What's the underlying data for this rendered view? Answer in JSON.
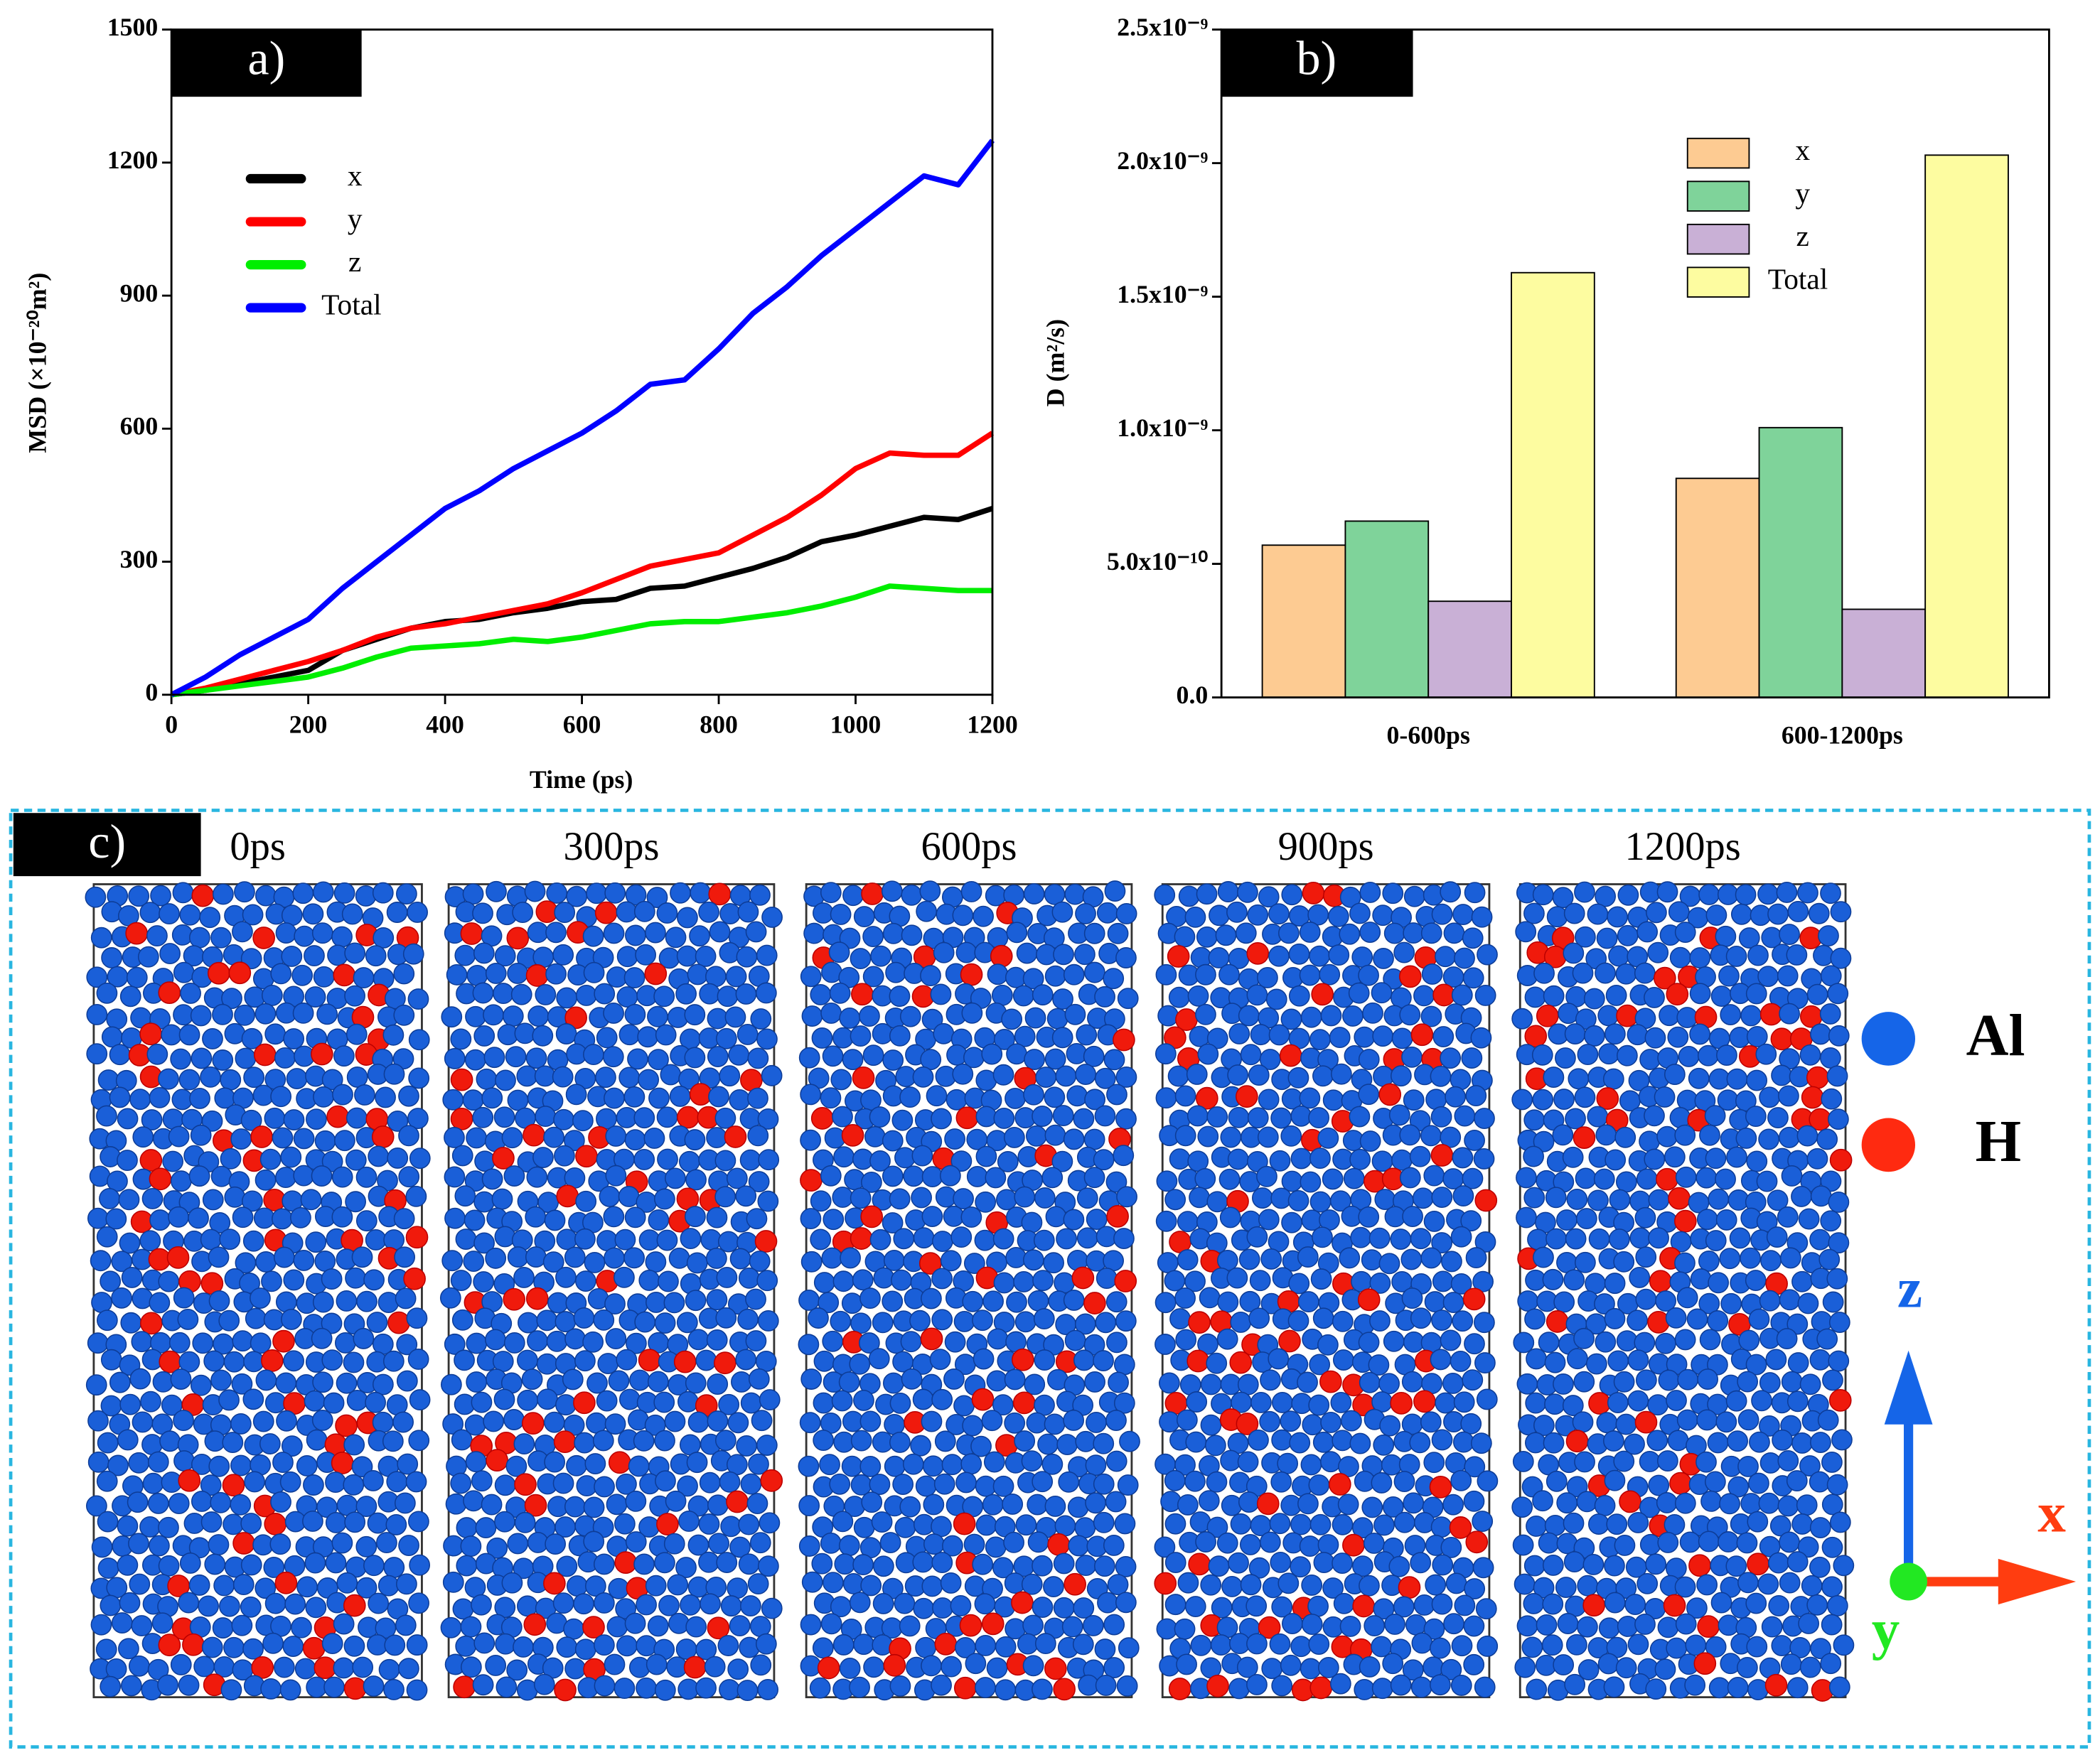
{
  "chart_data": [
    {
      "type": "line",
      "label": "a)",
      "xlabel": "Time (ps)",
      "ylabel": "MSD (×10⁻²⁰m²)",
      "x": [
        0,
        50,
        100,
        150,
        200,
        250,
        300,
        350,
        400,
        450,
        500,
        550,
        600,
        650,
        700,
        750,
        800,
        850,
        900,
        950,
        1000,
        1050,
        1100,
        1150,
        1200
      ],
      "series": [
        {
          "name": "x",
          "color": "#000000",
          "values": [
            0,
            10,
            25,
            40,
            55,
            100,
            125,
            150,
            165,
            170,
            185,
            195,
            210,
            215,
            240,
            245,
            265,
            285,
            310,
            345,
            360,
            380,
            400,
            395,
            420
          ]
        },
        {
          "name": "y",
          "color": "#ff0000",
          "values": [
            0,
            15,
            35,
            55,
            75,
            100,
            130,
            150,
            160,
            175,
            190,
            205,
            230,
            260,
            290,
            305,
            320,
            360,
            400,
            450,
            510,
            545,
            540,
            540,
            590
          ]
        },
        {
          "name": "z",
          "color": "#00ee00",
          "values": [
            0,
            10,
            20,
            30,
            40,
            60,
            85,
            105,
            110,
            115,
            125,
            120,
            130,
            145,
            160,
            165,
            165,
            175,
            185,
            200,
            220,
            245,
            240,
            235,
            235
          ]
        },
        {
          "name": "Total",
          "color": "#0000ff",
          "values": [
            0,
            40,
            90,
            130,
            170,
            240,
            300,
            360,
            420,
            460,
            510,
            550,
            590,
            640,
            700,
            710,
            780,
            860,
            920,
            990,
            1050,
            1110,
            1170,
            1150,
            1250
          ]
        }
      ],
      "xlim": [
        0,
        1200
      ],
      "xticks": [
        0,
        200,
        400,
        600,
        800,
        1000,
        1200
      ],
      "ylim": [
        0,
        1500
      ],
      "yticks": [
        0,
        300,
        600,
        900,
        1200,
        1500
      ]
    },
    {
      "type": "bar",
      "label": "b)",
      "ylabel": "D (m²/s)",
      "categories": [
        "0-600ps",
        "600-1200ps"
      ],
      "series": [
        {
          "name": "x",
          "color": "#fdcb92",
          "values": [
            5.7e-10,
            8.2e-10
          ]
        },
        {
          "name": "y",
          "color": "#7fd39a",
          "values": [
            6.6e-10,
            1.01e-09
          ]
        },
        {
          "name": "z",
          "color": "#c9b0d6",
          "values": [
            3.6e-10,
            3.3e-10
          ]
        },
        {
          "name": "Total",
          "color": "#fdfca0",
          "values": [
            1.59e-09,
            2.03e-09
          ]
        }
      ],
      "ylim": [
        0,
        2.5e-09
      ],
      "yticks": [
        {
          "value": 0,
          "label": "0.0"
        },
        {
          "value": 5e-10,
          "label": "5.0x10⁻¹⁰"
        },
        {
          "value": 1e-09,
          "label": "1.0x10⁻⁹"
        },
        {
          "value": 1.5e-09,
          "label": "1.5x10⁻⁹"
        },
        {
          "value": 2e-09,
          "label": "2.0x10⁻⁹"
        },
        {
          "value": 2.5e-09,
          "label": "2.5x10⁻⁹"
        }
      ]
    }
  ],
  "snapshots": {
    "label": "c)",
    "times": [
      "0ps",
      "300ps",
      "600ps",
      "900ps",
      "1200ps"
    ],
    "legend": [
      "Al",
      "H"
    ],
    "axes": [
      "z",
      "x",
      "y"
    ]
  }
}
